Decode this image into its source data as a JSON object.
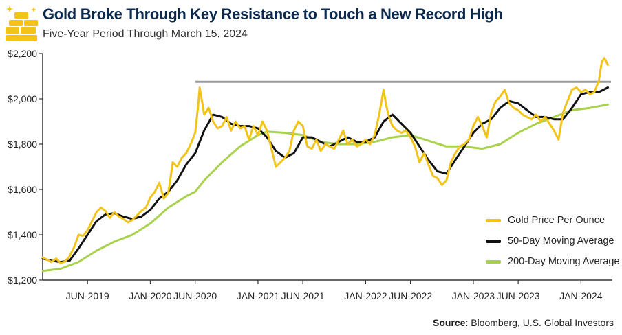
{
  "header": {
    "title": "Gold Broke Through Key Resistance to Touch a New Record High",
    "subtitle": "Five-Year Period Through March 15, 2024"
  },
  "source": {
    "label": "Source",
    "text": ": Bloomberg, U.S. Global Investors"
  },
  "colors": {
    "gold": "#f2c318",
    "ma50": "#111111",
    "ma200": "#a8d14c",
    "resistance": "#9a9a9a",
    "title": "#0c2a4d"
  },
  "logo_icon": "gold-bars-icon",
  "chart_data": {
    "type": "line",
    "x_tick_labels": [
      "JUN-2019",
      "JAN-2020",
      "JUN-2020",
      "JAN-2021",
      "JUN-2021",
      "JAN-2022",
      "JUN-2022",
      "JAN-2023",
      "JUN-2023",
      "JAN-2024"
    ],
    "x_tick_positions": [
      5,
      12,
      17,
      24,
      29,
      36,
      41,
      48,
      53,
      60
    ],
    "x_domain": [
      0,
      63.5
    ],
    "y_tick_labels": [
      "$1,200",
      "$1,400",
      "$1,600",
      "$1,800",
      "$2,000",
      "$2,200"
    ],
    "y_tick_values": [
      1200,
      1400,
      1600,
      1800,
      2000,
      2200
    ],
    "ylim": [
      1200,
      2200
    ],
    "resistance": {
      "value": 2075,
      "x_start": 17
    },
    "legend_position": "bottom-right",
    "series": [
      {
        "name": "Gold Price Per Ounce",
        "key": "gold",
        "points": [
          [
            0,
            1300
          ],
          [
            0.5,
            1290
          ],
          [
            1,
            1280
          ],
          [
            1.5,
            1295
          ],
          [
            2,
            1275
          ],
          [
            2.5,
            1282
          ],
          [
            3,
            1305
          ],
          [
            3.5,
            1345
          ],
          [
            4,
            1400
          ],
          [
            4.5,
            1395
          ],
          [
            5,
            1420
          ],
          [
            5.5,
            1460
          ],
          [
            6,
            1500
          ],
          [
            6.5,
            1520
          ],
          [
            7,
            1505
          ],
          [
            7.5,
            1475
          ],
          [
            8,
            1500
          ],
          [
            8.5,
            1480
          ],
          [
            9,
            1470
          ],
          [
            9.5,
            1455
          ],
          [
            10,
            1465
          ],
          [
            10.5,
            1485
          ],
          [
            11,
            1505
          ],
          [
            11.5,
            1520
          ],
          [
            12,
            1565
          ],
          [
            12.5,
            1590
          ],
          [
            13,
            1630
          ],
          [
            13.5,
            1560
          ],
          [
            14,
            1585
          ],
          [
            14.5,
            1720
          ],
          [
            15,
            1700
          ],
          [
            15.5,
            1740
          ],
          [
            16,
            1760
          ],
          [
            16.5,
            1800
          ],
          [
            17,
            1850
          ],
          [
            17.3,
            1960
          ],
          [
            17.5,
            2050
          ],
          [
            17.8,
            1980
          ],
          [
            18,
            1930
          ],
          [
            18.5,
            1960
          ],
          [
            19,
            1900
          ],
          [
            19.5,
            1870
          ],
          [
            20,
            1880
          ],
          [
            20.5,
            1920
          ],
          [
            21,
            1860
          ],
          [
            21.5,
            1900
          ],
          [
            22,
            1870
          ],
          [
            22.5,
            1880
          ],
          [
            23,
            1820
          ],
          [
            23.5,
            1880
          ],
          [
            24,
            1840
          ],
          [
            24.5,
            1900
          ],
          [
            25,
            1860
          ],
          [
            25.5,
            1780
          ],
          [
            26,
            1700
          ],
          [
            26.5,
            1720
          ],
          [
            27,
            1740
          ],
          [
            27.5,
            1770
          ],
          [
            28,
            1860
          ],
          [
            28.5,
            1900
          ],
          [
            29,
            1880
          ],
          [
            29.5,
            1790
          ],
          [
            30,
            1780
          ],
          [
            30.5,
            1820
          ],
          [
            31,
            1770
          ],
          [
            31.5,
            1800
          ],
          [
            32,
            1790
          ],
          [
            32.5,
            1780
          ],
          [
            33,
            1820
          ],
          [
            33.5,
            1860
          ],
          [
            34,
            1800
          ],
          [
            34.5,
            1820
          ],
          [
            35,
            1790
          ],
          [
            35.5,
            1800
          ],
          [
            36,
            1820
          ],
          [
            36.5,
            1800
          ],
          [
            37,
            1840
          ],
          [
            37.5,
            1930
          ],
          [
            38,
            2040
          ],
          [
            38.3,
            1970
          ],
          [
            38.6,
            1920
          ],
          [
            39,
            1880
          ],
          [
            39.5,
            1860
          ],
          [
            40,
            1850
          ],
          [
            40.5,
            1860
          ],
          [
            41,
            1830
          ],
          [
            41.5,
            1790
          ],
          [
            42,
            1720
          ],
          [
            42.5,
            1760
          ],
          [
            43,
            1710
          ],
          [
            43.5,
            1660
          ],
          [
            44,
            1650
          ],
          [
            44.5,
            1620
          ],
          [
            45,
            1640
          ],
          [
            45.5,
            1720
          ],
          [
            46,
            1760
          ],
          [
            46.5,
            1790
          ],
          [
            47,
            1800
          ],
          [
            47.5,
            1820
          ],
          [
            48,
            1880
          ],
          [
            48.5,
            1920
          ],
          [
            49,
            1880
          ],
          [
            49.5,
            1830
          ],
          [
            50,
            1940
          ],
          [
            50.5,
            1990
          ],
          [
            51,
            2010
          ],
          [
            51.5,
            2040
          ],
          [
            52,
            1980
          ],
          [
            52.5,
            1960
          ],
          [
            53,
            1950
          ],
          [
            53.5,
            1930
          ],
          [
            54,
            1920
          ],
          [
            54.5,
            1910
          ],
          [
            55,
            1930
          ],
          [
            55.5,
            1900
          ],
          [
            56,
            1920
          ],
          [
            56.5,
            1890
          ],
          [
            57,
            1860
          ],
          [
            57.5,
            1820
          ],
          [
            58,
            1940
          ],
          [
            58.5,
            1990
          ],
          [
            59,
            2040
          ],
          [
            59.5,
            2050
          ],
          [
            60,
            2030
          ],
          [
            60.5,
            2040
          ],
          [
            61,
            2020
          ],
          [
            61.5,
            2030
          ],
          [
            62,
            2080
          ],
          [
            62.3,
            2160
          ],
          [
            62.6,
            2180
          ],
          [
            63,
            2150
          ]
        ]
      },
      {
        "name": "50-Day Moving Average",
        "key": "ma50",
        "points": [
          [
            0,
            1295
          ],
          [
            1,
            1285
          ],
          [
            2,
            1280
          ],
          [
            3,
            1285
          ],
          [
            4,
            1340
          ],
          [
            5,
            1400
          ],
          [
            6,
            1460
          ],
          [
            7,
            1490
          ],
          [
            8,
            1495
          ],
          [
            9,
            1480
          ],
          [
            10,
            1470
          ],
          [
            11,
            1480
          ],
          [
            12,
            1510
          ],
          [
            13,
            1560
          ],
          [
            14,
            1590
          ],
          [
            15,
            1640
          ],
          [
            16,
            1710
          ],
          [
            17,
            1760
          ],
          [
            18,
            1860
          ],
          [
            19,
            1930
          ],
          [
            20,
            1920
          ],
          [
            21,
            1890
          ],
          [
            22,
            1880
          ],
          [
            23,
            1880
          ],
          [
            24,
            1870
          ],
          [
            25,
            1830
          ],
          [
            26,
            1770
          ],
          [
            27,
            1740
          ],
          [
            28,
            1760
          ],
          [
            29,
            1830
          ],
          [
            30,
            1830
          ],
          [
            31,
            1810
          ],
          [
            32,
            1790
          ],
          [
            33,
            1810
          ],
          [
            34,
            1830
          ],
          [
            35,
            1810
          ],
          [
            36,
            1810
          ],
          [
            37,
            1830
          ],
          [
            38,
            1900
          ],
          [
            39,
            1930
          ],
          [
            40,
            1890
          ],
          [
            41,
            1850
          ],
          [
            42,
            1790
          ],
          [
            43,
            1730
          ],
          [
            44,
            1680
          ],
          [
            45,
            1670
          ],
          [
            46,
            1730
          ],
          [
            47,
            1790
          ],
          [
            48,
            1850
          ],
          [
            49,
            1890
          ],
          [
            50,
            1910
          ],
          [
            51,
            1960
          ],
          [
            52,
            1990
          ],
          [
            53,
            1980
          ],
          [
            54,
            1950
          ],
          [
            55,
            1920
          ],
          [
            56,
            1920
          ],
          [
            57,
            1910
          ],
          [
            58,
            1910
          ],
          [
            59,
            1960
          ],
          [
            60,
            2020
          ],
          [
            61,
            2030
          ],
          [
            62,
            2030
          ],
          [
            63,
            2050
          ]
        ]
      },
      {
        "name": "200-Day Moving Average",
        "key": "ma200",
        "points": [
          [
            0,
            1240
          ],
          [
            2,
            1250
          ],
          [
            4,
            1280
          ],
          [
            6,
            1330
          ],
          [
            8,
            1370
          ],
          [
            10,
            1400
          ],
          [
            12,
            1450
          ],
          [
            14,
            1520
          ],
          [
            16,
            1570
          ],
          [
            17,
            1590
          ],
          [
            18,
            1640
          ],
          [
            20,
            1720
          ],
          [
            22,
            1790
          ],
          [
            24,
            1840
          ],
          [
            25,
            1855
          ],
          [
            27,
            1850
          ],
          [
            29,
            1840
          ],
          [
            31,
            1810
          ],
          [
            33,
            1800
          ],
          [
            35,
            1800
          ],
          [
            37,
            1810
          ],
          [
            39,
            1830
          ],
          [
            41,
            1840
          ],
          [
            43,
            1815
          ],
          [
            45,
            1790
          ],
          [
            47,
            1790
          ],
          [
            49,
            1780
          ],
          [
            51,
            1800
          ],
          [
            53,
            1850
          ],
          [
            55,
            1890
          ],
          [
            57,
            1920
          ],
          [
            59,
            1950
          ],
          [
            61,
            1960
          ],
          [
            63,
            1975
          ]
        ]
      }
    ]
  }
}
